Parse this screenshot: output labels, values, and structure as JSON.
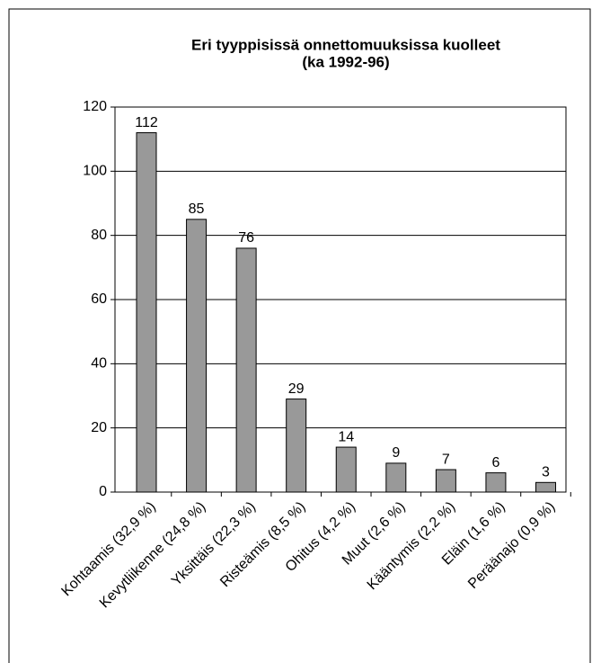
{
  "chart_data": {
    "type": "bar",
    "title": "Eri tyyppisissä onnettomuuksissa kuolleet",
    "subtitle": "(ka 1992-96)",
    "categories": [
      "Kohtaamis (32,9 %)",
      "Kevytliikenne (24,8 %)",
      "Yksittäis (22,3 %)",
      "Risteämis (8,5 %)",
      "Ohitus (4,2 %)",
      "Muut (2,6 %)",
      "Kääntymis (2,2 %)",
      "Eläin (1,6 %)",
      "Peräänajo (0,9 %)"
    ],
    "values": [
      112,
      85,
      76,
      29,
      14,
      9,
      7,
      6,
      3
    ],
    "color": "#999999",
    "ylim": [
      0,
      120
    ],
    "yticks": [
      0,
      20,
      40,
      60,
      80,
      100,
      120
    ],
    "grid": true
  }
}
